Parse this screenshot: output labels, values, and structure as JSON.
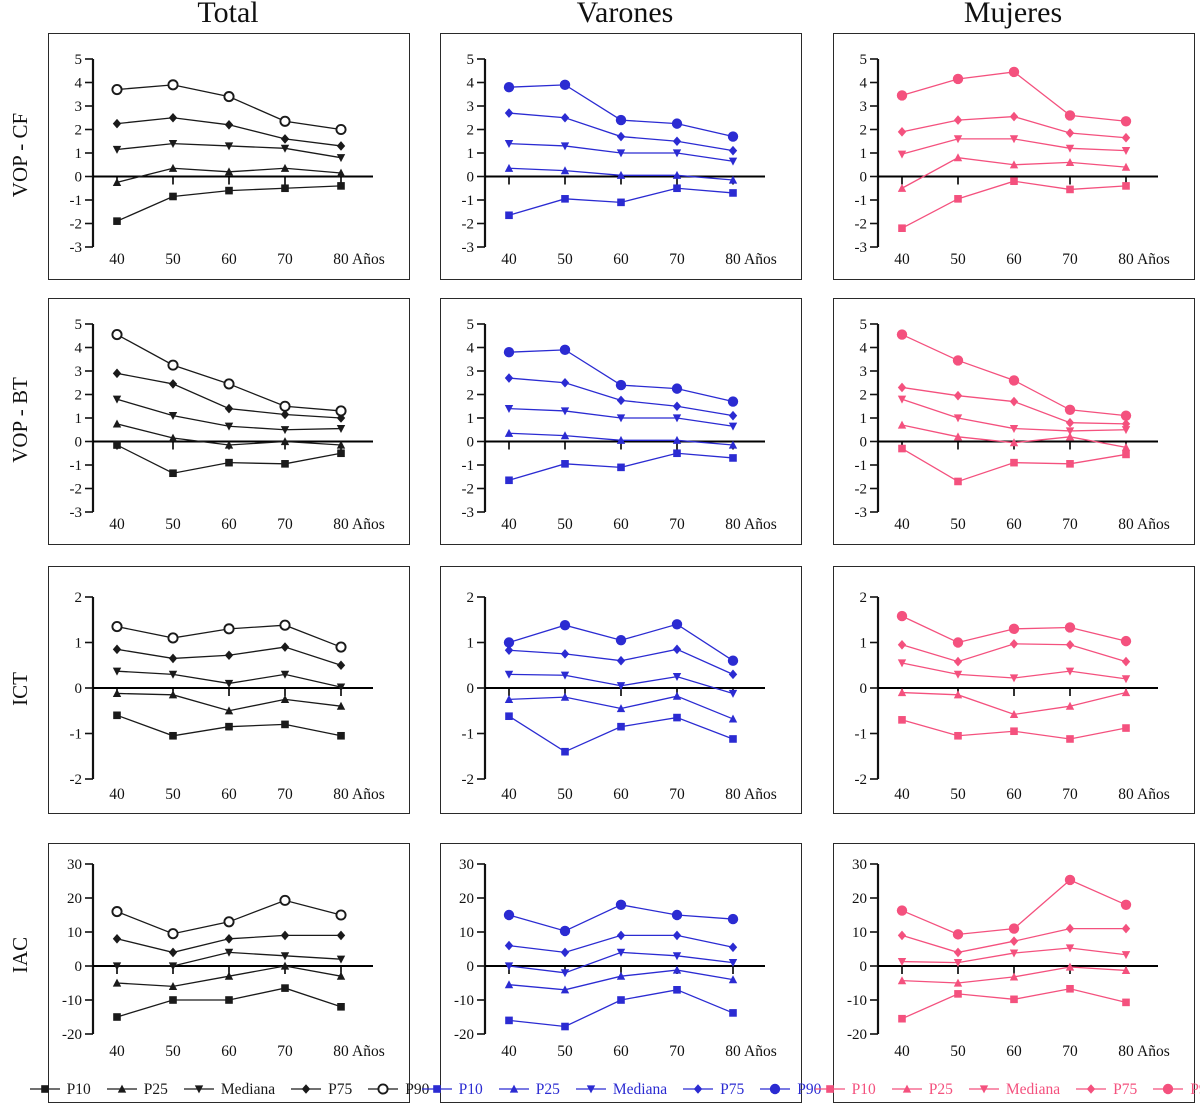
{
  "figure_title": "",
  "chart_data": {
    "type": "line",
    "x_categories": [
      "40",
      "50",
      "60",
      "70",
      "80"
    ],
    "x_axis_suffix": "Años",
    "series_labels": [
      "P10",
      "P25",
      "Mediana",
      "P75",
      "P90"
    ],
    "markers": {
      "P10": "square",
      "P25": "triangle-up",
      "Mediana": "triangle-down",
      "P75": "diamond",
      "P90": "circle"
    },
    "grid": "off",
    "legend_position": "bottom-of-last-row",
    "columns": [
      {
        "title": "Total",
        "color": "#1a1a1a",
        "p90_style": "open-circle"
      },
      {
        "title": "Varones",
        "color": "#2b2bd2",
        "p90_style": "filled-circle"
      },
      {
        "title": "Mujeres",
        "color": "#f4517e",
        "p90_style": "filled-circle"
      }
    ],
    "rows": [
      {
        "label": "VOP - CF",
        "ylim": [
          -3,
          5
        ],
        "yticks": [
          5,
          4,
          3,
          2,
          1,
          0,
          -1,
          -2,
          -3
        ]
      },
      {
        "label": "VOP - BT",
        "ylim": [
          -3,
          5
        ],
        "yticks": [
          5,
          4,
          3,
          2,
          1,
          0,
          -1,
          -2,
          -3
        ]
      },
      {
        "label": "ICT",
        "ylim": [
          -2,
          2
        ],
        "yticks": [
          2,
          1,
          0,
          -1,
          -2
        ]
      },
      {
        "label": "IAC",
        "ylim": [
          -20,
          30
        ],
        "yticks": [
          30,
          20,
          10,
          0,
          -10,
          -20
        ]
      }
    ],
    "cells": [
      {
        "row": "VOP - CF",
        "col": "Total",
        "series": {
          "P10": [
            -1.9,
            -0.85,
            -0.6,
            -0.5,
            -0.4
          ],
          "P25": [
            -0.25,
            0.35,
            0.2,
            0.35,
            0.15
          ],
          "Mediana": [
            1.15,
            1.4,
            1.3,
            1.2,
            0.8
          ],
          "P75": [
            2.25,
            2.5,
            2.2,
            1.6,
            1.3
          ],
          "P90": [
            3.7,
            3.9,
            3.4,
            2.35,
            2.0
          ]
        }
      },
      {
        "row": "VOP - CF",
        "col": "Varones",
        "series": {
          "P10": [
            -1.65,
            -0.95,
            -1.1,
            -0.5,
            -0.7
          ],
          "P25": [
            0.35,
            0.25,
            0.05,
            0.05,
            -0.15
          ],
          "Mediana": [
            1.4,
            1.3,
            1.0,
            1.0,
            0.65
          ],
          "P75": [
            2.7,
            2.5,
            1.7,
            1.5,
            1.1
          ],
          "P90": [
            3.8,
            3.9,
            2.4,
            2.25,
            1.7
          ]
        }
      },
      {
        "row": "VOP - CF",
        "col": "Mujeres",
        "series": {
          "P10": [
            -2.2,
            -0.95,
            -0.2,
            -0.55,
            -0.4
          ],
          "P25": [
            -0.5,
            0.8,
            0.5,
            0.6,
            0.4
          ],
          "Mediana": [
            0.95,
            1.6,
            1.6,
            1.2,
            1.1
          ],
          "P75": [
            1.9,
            2.4,
            2.55,
            1.85,
            1.65
          ],
          "P90": [
            3.45,
            4.15,
            4.45,
            2.6,
            2.35
          ]
        }
      },
      {
        "row": "VOP - BT",
        "col": "Total",
        "series": {
          "P10": [
            -0.15,
            -1.35,
            -0.9,
            -0.95,
            -0.5
          ],
          "P25": [
            0.75,
            0.15,
            -0.15,
            0.0,
            -0.15
          ],
          "Mediana": [
            1.8,
            1.1,
            0.65,
            0.5,
            0.55
          ],
          "P75": [
            2.9,
            2.45,
            1.4,
            1.15,
            1.0
          ],
          "P90": [
            4.55,
            3.25,
            2.45,
            1.5,
            1.3
          ]
        }
      },
      {
        "row": "VOP - BT",
        "col": "Varones",
        "series": {
          "P10": [
            -1.65,
            -0.95,
            -1.1,
            -0.5,
            -0.7
          ],
          "P25": [
            0.35,
            0.25,
            0.05,
            0.05,
            -0.15
          ],
          "Mediana": [
            1.4,
            1.3,
            1.0,
            1.0,
            0.65
          ],
          "P75": [
            2.7,
            2.5,
            1.75,
            1.5,
            1.1
          ],
          "P90": [
            3.8,
            3.9,
            2.4,
            2.25,
            1.7
          ]
        }
      },
      {
        "row": "VOP - BT",
        "col": "Mujeres",
        "series": {
          "P10": [
            -0.3,
            -1.7,
            -0.9,
            -0.95,
            -0.55
          ],
          "P25": [
            0.7,
            0.2,
            -0.05,
            0.2,
            -0.25
          ],
          "Mediana": [
            1.8,
            1.0,
            0.55,
            0.45,
            0.5
          ],
          "P75": [
            2.3,
            1.95,
            1.7,
            0.8,
            0.75
          ],
          "P90": [
            4.55,
            3.45,
            2.6,
            1.35,
            1.1
          ]
        }
      },
      {
        "row": "ICT",
        "col": "Total",
        "series": {
          "P10": [
            -0.6,
            -1.05,
            -0.85,
            -0.8,
            -1.05
          ],
          "P25": [
            -0.12,
            -0.15,
            -0.5,
            -0.25,
            -0.4
          ],
          "Mediana": [
            0.37,
            0.3,
            0.1,
            0.3,
            0.02
          ],
          "P75": [
            0.85,
            0.65,
            0.72,
            0.9,
            0.5
          ],
          "P90": [
            1.35,
            1.1,
            1.3,
            1.38,
            0.9
          ]
        }
      },
      {
        "row": "ICT",
        "col": "Varones",
        "series": {
          "P10": [
            -0.62,
            -1.4,
            -0.85,
            -0.65,
            -1.12
          ],
          "P25": [
            -0.25,
            -0.2,
            -0.45,
            -0.18,
            -0.68
          ],
          "Mediana": [
            0.3,
            0.28,
            0.05,
            0.25,
            -0.12
          ],
          "P75": [
            0.83,
            0.75,
            0.6,
            0.85,
            0.3
          ],
          "P90": [
            1.0,
            1.38,
            1.05,
            1.4,
            0.6
          ]
        }
      },
      {
        "row": "ICT",
        "col": "Mujeres",
        "series": {
          "P10": [
            -0.7,
            -1.05,
            -0.95,
            -1.12,
            -0.88
          ],
          "P25": [
            -0.1,
            -0.15,
            -0.58,
            -0.4,
            -0.1
          ],
          "Mediana": [
            0.55,
            0.3,
            0.22,
            0.37,
            0.2
          ],
          "P75": [
            0.95,
            0.58,
            0.97,
            0.95,
            0.58
          ],
          "P90": [
            1.58,
            1.0,
            1.3,
            1.33,
            1.03
          ]
        }
      },
      {
        "row": "IAC",
        "col": "Total",
        "series": {
          "P10": [
            -15,
            -10,
            -10,
            -6.5,
            -12
          ],
          "P25": [
            -5,
            -6,
            -3,
            0,
            -3
          ],
          "Mediana": [
            0,
            0,
            4,
            3,
            2
          ],
          "P75": [
            8,
            4,
            8,
            9,
            9
          ],
          "P90": [
            16,
            9.5,
            13,
            19.3,
            15
          ]
        }
      },
      {
        "row": "IAC",
        "col": "Varones",
        "series": {
          "P10": [
            -16,
            -17.8,
            -10,
            -7,
            -13.8
          ],
          "P25": [
            -5.5,
            -7,
            -3,
            -1.2,
            -4
          ],
          "Mediana": [
            0,
            -2,
            4,
            3,
            1
          ],
          "P75": [
            6,
            4,
            9,
            9,
            5.5
          ],
          "P90": [
            15,
            10.3,
            18,
            15,
            13.8
          ]
        }
      },
      {
        "row": "IAC",
        "col": "Mujeres",
        "series": {
          "P10": [
            -15.5,
            -8.2,
            -9.8,
            -6.7,
            -10.7
          ],
          "P25": [
            -4.3,
            -5,
            -3.2,
            -0.3,
            -1.3
          ],
          "Mediana": [
            1.3,
            1.0,
            3.8,
            5.3,
            3.3
          ],
          "P75": [
            9,
            4,
            7.3,
            11,
            11
          ],
          "P90": [
            16.3,
            9.3,
            11,
            25.3,
            18
          ]
        }
      }
    ]
  }
}
